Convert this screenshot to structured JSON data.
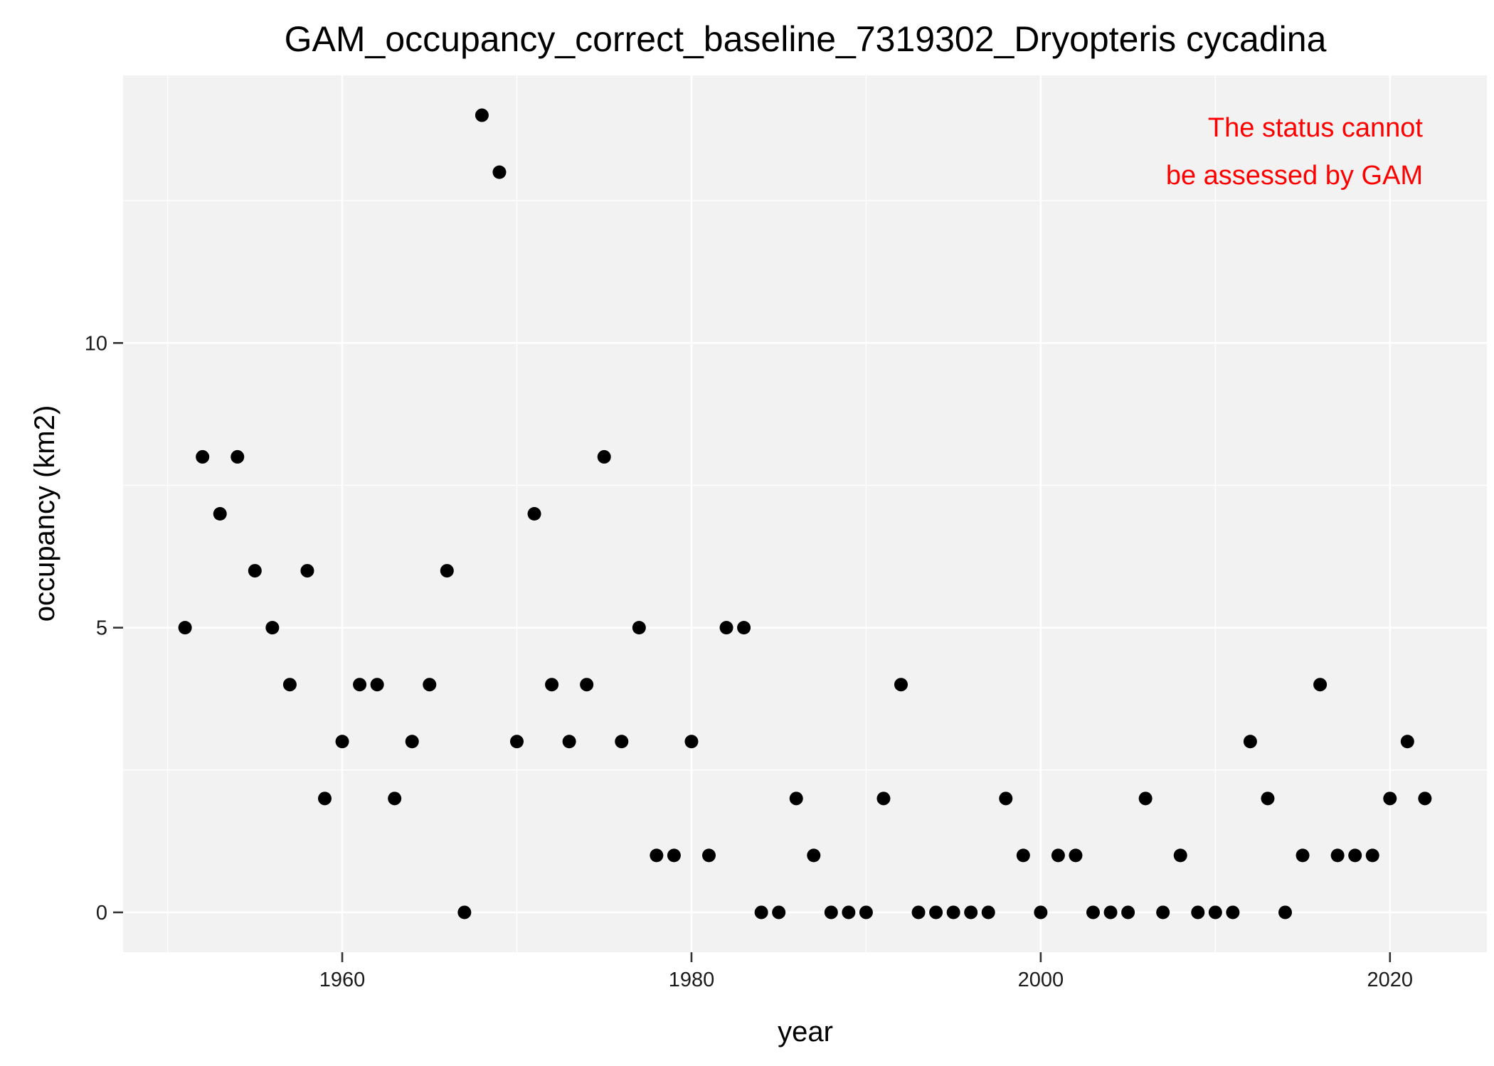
{
  "chart_data": {
    "type": "scatter",
    "title": "GAM_occupancy_correct_baseline_7319302_Dryopteris cycadina",
    "xlabel": "year",
    "ylabel": "occupancy (km2)",
    "xlim": [
      1947.45,
      2025.55
    ],
    "ylim": [
      -0.7,
      14.7
    ],
    "x_ticks": [
      1960,
      1980,
      2000,
      2020
    ],
    "y_ticks": [
      0,
      5,
      10
    ],
    "x_tick_labels": [
      "1960",
      "1980",
      "2000",
      "2020"
    ],
    "y_tick_labels": [
      "0",
      "5",
      "10"
    ],
    "grid": true,
    "panel_background": "#f2f2f2",
    "grid_color": "#ffffff",
    "point_color": "#000000",
    "annotation": {
      "lines": [
        "The status cannot",
        "be assessed by GAM"
      ],
      "color": "#ff0000",
      "position": "top-right"
    },
    "series": [
      {
        "x": [
          1951,
          1952,
          1953,
          1954,
          1955,
          1956,
          1957,
          1958,
          1959,
          1960,
          1961,
          1962,
          1963,
          1964,
          1965,
          1966,
          1967,
          1968,
          1969,
          1970,
          1971,
          1972,
          1973,
          1974,
          1975,
          1976,
          1977,
          1978,
          1979,
          1980,
          1981,
          1982,
          1983,
          1984,
          1985,
          1986,
          1987,
          1988,
          1989,
          1990,
          1991,
          1992,
          1993,
          1994,
          1995,
          1996,
          1997,
          1998,
          1999,
          2000,
          2001,
          2002,
          2003,
          2004,
          2005,
          2006,
          2007,
          2008,
          2009,
          2010,
          2011,
          2012,
          2013,
          2014,
          2015,
          2016,
          2017,
          2018,
          2019,
          2020,
          2021,
          2022
        ],
        "y": [
          5,
          8,
          7,
          8,
          6,
          5,
          4,
          6,
          2,
          3,
          4,
          4,
          2,
          3,
          4,
          6,
          0,
          14,
          13,
          3,
          7,
          4,
          3,
          4,
          8,
          3,
          5,
          1,
          1,
          3,
          1,
          5,
          5,
          0,
          0,
          2,
          1,
          0,
          0,
          0,
          2,
          4,
          0,
          0,
          0,
          0,
          0,
          2,
          1,
          0,
          1,
          1,
          0,
          0,
          0,
          2,
          0,
          1,
          0,
          0,
          0,
          3,
          2,
          0,
          1,
          4,
          1,
          1,
          1,
          2,
          3,
          2
        ]
      }
    ]
  }
}
